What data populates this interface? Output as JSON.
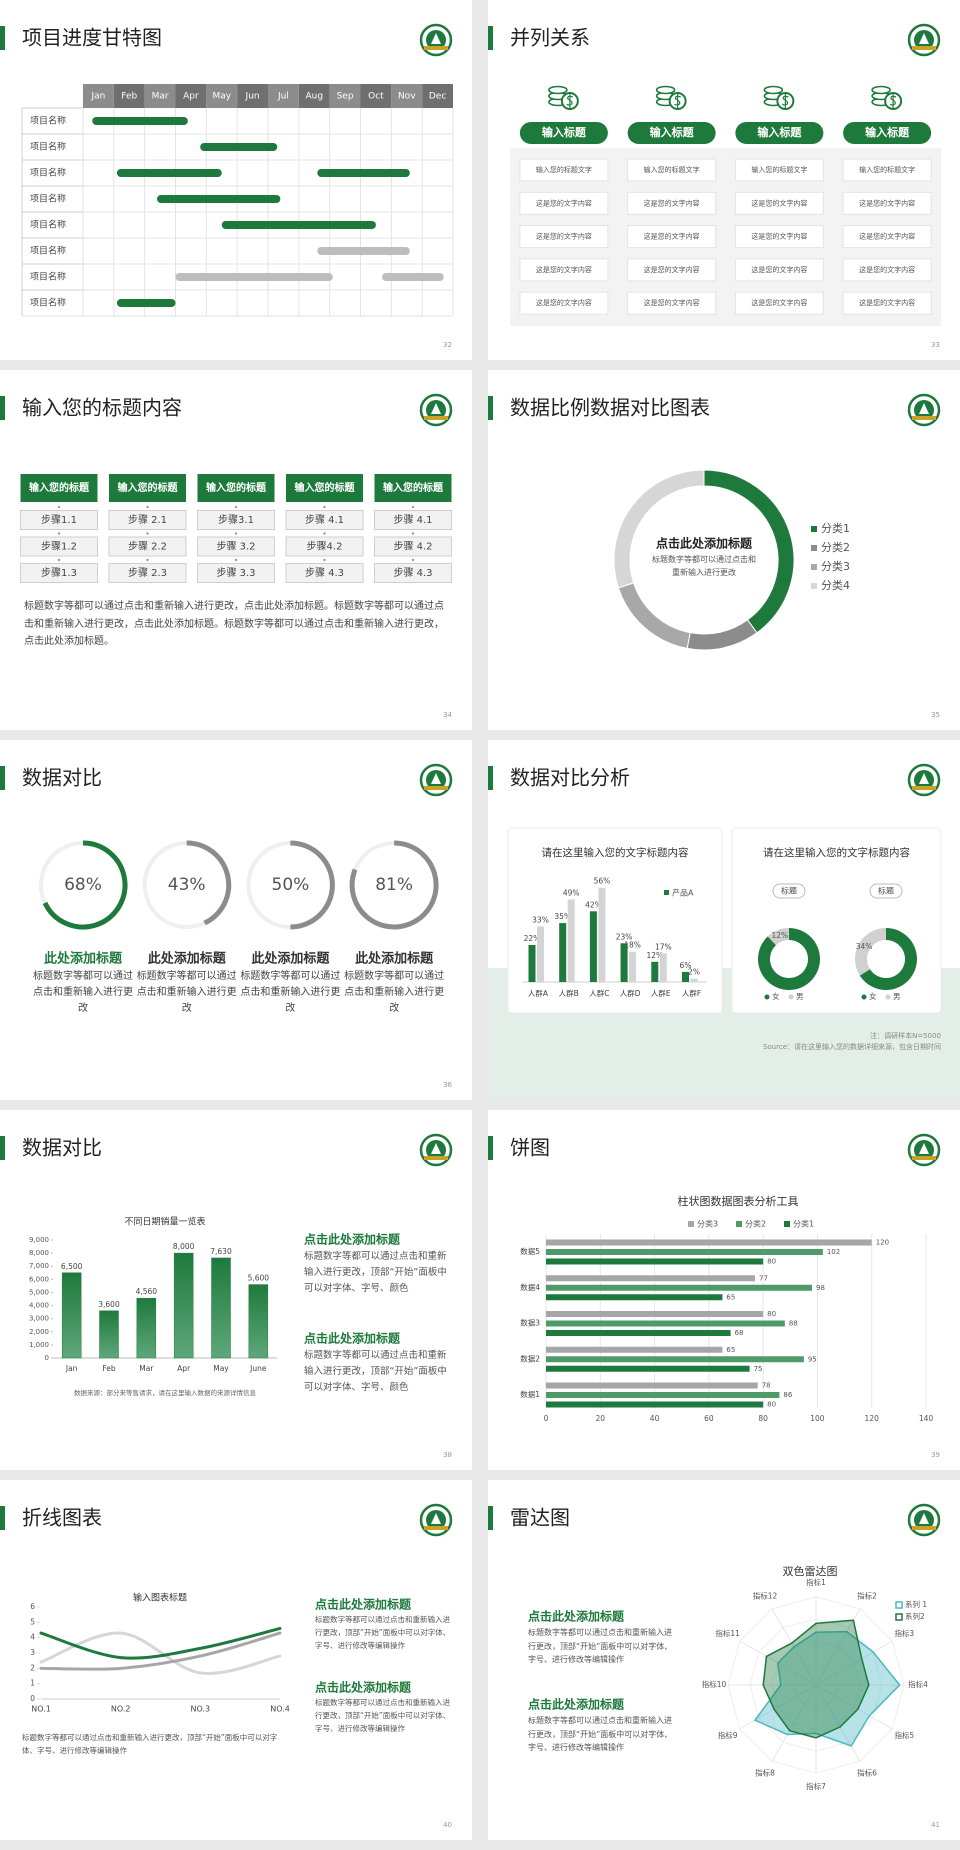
{
  "slides": [
    {
      "title": "项目进度甘特图",
      "page": "32",
      "chart": {
        "type": "gantt",
        "months": [
          "Jan",
          "Feb",
          "Mar",
          "Apr",
          "May",
          "Jun",
          "Jul",
          "Aug",
          "Sep",
          "Oct",
          "Nov",
          "Dec"
        ],
        "xlim": [
          0,
          12
        ],
        "tasks": [
          {
            "label": "项目名称",
            "bars": [
              {
                "start": 0.3,
                "end": 3.4,
                "color": "#1e7a3c"
              }
            ]
          },
          {
            "label": "项目名称",
            "bars": [
              {
                "start": 3.8,
                "end": 6.3,
                "color": "#1e7a3c"
              }
            ]
          },
          {
            "label": "项目名称",
            "bars": [
              {
                "start": 1.1,
                "end": 4.5,
                "color": "#1e7a3c"
              },
              {
                "start": 7.6,
                "end": 10.6,
                "color": "#1e7a3c"
              }
            ]
          },
          {
            "label": "项目名称",
            "bars": [
              {
                "start": 2.4,
                "end": 6.4,
                "color": "#1e7a3c"
              }
            ]
          },
          {
            "label": "项目名称",
            "bars": [
              {
                "start": 4.5,
                "end": 9.5,
                "color": "#1e7a3c"
              }
            ]
          },
          {
            "label": "项目名称",
            "bars": [
              {
                "start": 7.6,
                "end": 10.6,
                "color": "#bdbdbd"
              }
            ]
          },
          {
            "label": "项目名称",
            "bars": [
              {
                "start": 3.0,
                "end": 8.1,
                "color": "#bdbdbd"
              },
              {
                "start": 9.7,
                "end": 11.7,
                "color": "#bdbdbd"
              }
            ]
          },
          {
            "label": "项目名称",
            "bars": [
              {
                "start": 1.1,
                "end": 3.0,
                "color": "#1e7a3c"
              }
            ]
          }
        ]
      }
    },
    {
      "title": "并列关系",
      "page": "33",
      "columns": [
        {
          "title": "输入标题",
          "items": [
            "输入您的标题文字",
            "这是您的文字内容",
            "这是您的文字内容",
            "这是您的文字内容",
            "这是您的文字内容"
          ]
        },
        {
          "title": "输入标题",
          "items": [
            "输入您的标题文字",
            "这是您的文字内容",
            "这是您的文字内容",
            "这是您的文字内容",
            "这是您的文字内容"
          ]
        },
        {
          "title": "输入标题",
          "items": [
            "输入您的标题文字",
            "这是您的文字内容",
            "这是您的文字内容",
            "这是您的文字内容",
            "这是您的文字内容"
          ]
        },
        {
          "title": "输入标题",
          "items": [
            "输入您的标题文字",
            "这是您的文字内容",
            "这是您的文字内容",
            "这是您的文字内容",
            "这是您的文字内容"
          ]
        }
      ]
    },
    {
      "title": "输入您的标题内容",
      "page": "34",
      "columns": [
        {
          "title": "输入您的标题",
          "steps": [
            "步骤1.1",
            "步骤1.2",
            "步骤1.3"
          ]
        },
        {
          "title": "输入您的标题",
          "steps": [
            "步骤 2.1",
            "步骤 2.2",
            "步骤 2.3"
          ]
        },
        {
          "title": "输入您的标题",
          "steps": [
            "步骤3.1",
            "步骤 3.2",
            "步骤 3.3"
          ]
        },
        {
          "title": "输入您的标题",
          "steps": [
            "步骤 4.1",
            "步骤4.2",
            "步骤 4.3"
          ]
        },
        {
          "title": "输入您的标题",
          "steps": [
            "步骤 4.1",
            "步骤 4.2",
            "步骤 4.3"
          ]
        }
      ],
      "paragraph": "标题数字等都可以通过点击和重新输入进行更改，点击此处添加标题。标题数字等都可以通过点击和重新输入进行更改，点击此处添加标题。标题数字等都可以通过点击和重新输入进行更改，点击此处添加标题。"
    },
    {
      "title": "数据比例数据对比图表",
      "page": "35",
      "chart": {
        "type": "donut",
        "center_title": "点击此处添加标题",
        "center_text": "标题数字等都可以通过点击和重新输入进行更改",
        "categories": [
          "分类1",
          "分类2",
          "分类3",
          "分类4"
        ],
        "values": [
          40,
          13,
          17,
          30
        ],
        "colors": [
          "#1e7a3c",
          "#8c8c8c",
          "#a8a8a8",
          "#d6d6d6"
        ]
      }
    },
    {
      "title": "数据对比",
      "page": "36",
      "chart": {
        "type": "progress",
        "ylim": [
          0,
          100
        ],
        "values": [
          68,
          43,
          50,
          81
        ],
        "value_labels": [
          "68%",
          "43%",
          "50%",
          "81%"
        ],
        "colors": [
          "#1e7a3c",
          "#8c8c8c",
          "#8c8c8c",
          "#8c8c8c"
        ],
        "titles": [
          "此处添加标题",
          "此处添加标题",
          "此处添加标题",
          "此处添加标题"
        ],
        "title_colors": [
          "#1e7a3c",
          "#333333",
          "#333333",
          "#333333"
        ],
        "texts": [
          "标题数字等都可以通过点击和重新输入进行更改",
          "标题数字等都可以通过点击和重新输入进行更改",
          "标题数字等都可以通过点击和重新输入进行更改",
          "标题数字等都可以通过点击和重新输入进行更改"
        ]
      }
    },
    {
      "title": "数据对比分析",
      "page": "37",
      "cards": [
        {
          "title": "请在这里输入您的文字标题内容",
          "chart": {
            "type": "bar",
            "categories": [
              "人群A",
              "人群B",
              "人群C",
              "人群D",
              "人群E",
              "人群F"
            ],
            "ylim": [
              0,
              60
            ],
            "series": [
              {
                "name": "产品A",
                "color": "#1e7a3c",
                "values": [
                  22,
                  35,
                  42,
                  23,
                  12,
                  6
                ],
                "value_labels": [
                  "22%",
                  "35%",
                  "42%",
                  "23%",
                  "12%",
                  "6%"
                ]
              },
              {
                "color": "#d4d4d4",
                "values": [
                  33,
                  49,
                  56,
                  18,
                  17,
                  2
                ],
                "value_labels": [
                  "33%",
                  "49%",
                  "56%",
                  "18%",
                  "17%",
                  "2%"
                ]
              }
            ]
          }
        },
        {
          "title": "请在这里输入您的文字标题内容",
          "chart": {
            "type": "donut",
            "categories": [
              "女",
              "男"
            ],
            "colors": [
              "#1e7a3c",
              "#d0d0d0"
            ],
            "donuts": [
              {
                "label": "标题",
                "values": [
                  88,
                  12
                ],
                "value_labels": [
                  null,
                  "12%"
                ]
              },
              {
                "label": "标题",
                "values": [
                  66,
                  34
                ],
                "value_labels": [
                  null,
                  "34%"
                ]
              }
            ]
          }
        }
      ],
      "notes": [
        "注：调研样本N=5000",
        "Source：请在这里输入您的数据详细来源，包含日期时间"
      ]
    },
    {
      "title": "数据对比",
      "page": "38",
      "chart": {
        "type": "bar",
        "title": "不同日期销量一览表",
        "categories": [
          "Jan",
          "Feb",
          "Mar",
          "Apr",
          "May",
          "June"
        ],
        "values": [
          6500,
          3600,
          4560,
          8000,
          7630,
          5600
        ],
        "value_labels": [
          "6,500",
          "3,600",
          "4,560",
          "8,000",
          "7,630",
          "5,600"
        ],
        "color": "#1e7a3c",
        "ylim": [
          0,
          9000
        ],
        "yticks": [
          0,
          {
            "value": 1000,
            "label": "1,000"
          },
          {
            "value": 2000,
            "label": "2,000"
          },
          {
            "value": 3000,
            "label": "3,000"
          },
          {
            "value": 4000,
            "label": "4,000"
          },
          {
            "value": 5000,
            "label": "5,000"
          },
          {
            "value": 6000,
            "label": "6,000"
          },
          {
            "value": 7000,
            "label": "7,000"
          },
          {
            "value": 8000,
            "label": "8,000"
          },
          {
            "value": 9000,
            "label": "9,000"
          }
        ],
        "source": "数据来源：部分来等售请求，请在这里输入数据的来源详情信息"
      },
      "blocks": [
        {
          "title": "点击此处添加标题",
          "text": "标题数字等都可以通过点击和重新输入进行更改，顶部“开始”面板中可以对字体、字号、颜色"
        },
        {
          "title": "点击此处添加标题",
          "text": "标题数字等都可以通过点击和重新输入进行更改，顶部“开始”面板中可以对字体、字号、颜色"
        }
      ]
    },
    {
      "title": "饼图",
      "page": "39",
      "chart": {
        "type": "hbar",
        "title": "柱状图数据图表分析工具",
        "categories": [
          "数据1",
          "数据2",
          "数据3",
          "数据4",
          "数据5"
        ],
        "series": [
          {
            "name": "分类3",
            "color": "#a6a6a6",
            "values": [
              78,
              65,
              80,
              77,
              120
            ]
          },
          {
            "name": "分类2",
            "color": "#4f9a68",
            "values": [
              86,
              95,
              88,
              98,
              102
            ]
          },
          {
            "name": "分类1",
            "color": "#1e7a3c",
            "values": [
              80,
              75,
              68,
              65,
              80
            ]
          }
        ],
        "xlim": [
          0,
          140
        ],
        "xticks": [
          0,
          20,
          40,
          60,
          80,
          100,
          120,
          140
        ]
      }
    },
    {
      "title": "折线图表",
      "page": "40",
      "chart": {
        "type": "line",
        "title": "输入图表标题",
        "categories": [
          "NO.1",
          "NO.2",
          "NO.3",
          "NO.4"
        ],
        "series": [
          {
            "color": "#1e7a3c",
            "values": [
              4.3,
              2.7,
              3.3,
              4.6
            ]
          },
          {
            "color": "#a6a6a6",
            "values": [
              2.0,
              2.0,
              2.8,
              4.3
            ]
          },
          {
            "color": "#d6d6d6",
            "values": [
              2.4,
              4.3,
              1.7,
              2.8
            ]
          }
        ],
        "ylim": [
          0,
          6
        ],
        "yticks": [
          0,
          1,
          2,
          3,
          4,
          5,
          6
        ]
      },
      "note": "标题数字等都可以通过点击和重新输入进行更改，顶部“开始”面板中可以对字体、字号、进行修改等编辑操作",
      "blocks": [
        {
          "title": "点击此处添加标题",
          "text": "标题数字等都可以通过点击和重新输入进行更改，顶部“开始”面板中可以对字体、字号、进行修改等编辑操作"
        },
        {
          "title": "点击此处添加标题",
          "text": "标题数字等都可以通过点击和重新输入进行更改，顶部“开始”面板中可以对字体、字号、进行修改等编辑操作"
        }
      ]
    },
    {
      "title": "雷达图",
      "page": "41",
      "chart": {
        "type": "radar",
        "title": "双色雷达图",
        "categories": [
          "指标1",
          "指标2",
          "指标3",
          "指标4",
          "指标5",
          "指标6",
          "指标7",
          "指标8",
          "指标9",
          "指标10",
          "指标11",
          "指标12"
        ],
        "rlim": [
          0,
          100
        ],
        "series": [
          {
            "name": "系列 1",
            "color": "#4bb6c2",
            "values": [
              60,
              70,
              75,
              95,
              70,
              80,
              55,
              65,
              80,
              40,
              50,
              50
            ]
          },
          {
            "name": "系列2",
            "color": "#1e7a3c",
            "values": [
              70,
              85,
              60,
              60,
              55,
              55,
              60,
              60,
              55,
              60,
              65,
              55
            ]
          }
        ]
      },
      "blocks": [
        {
          "title": "点击此处添加标题",
          "text": "标题数字等都可以通过点击和重新输入进行更改，顶部“开始”面板中可以对字体、字号、进行修改等编辑操作"
        },
        {
          "title": "点击此处添加标题",
          "text": "标题数字等都可以通过点击和重新输入进行更改，顶部“开始”面板中可以对字体、字号、进行修改等编辑操作"
        }
      ]
    }
  ]
}
